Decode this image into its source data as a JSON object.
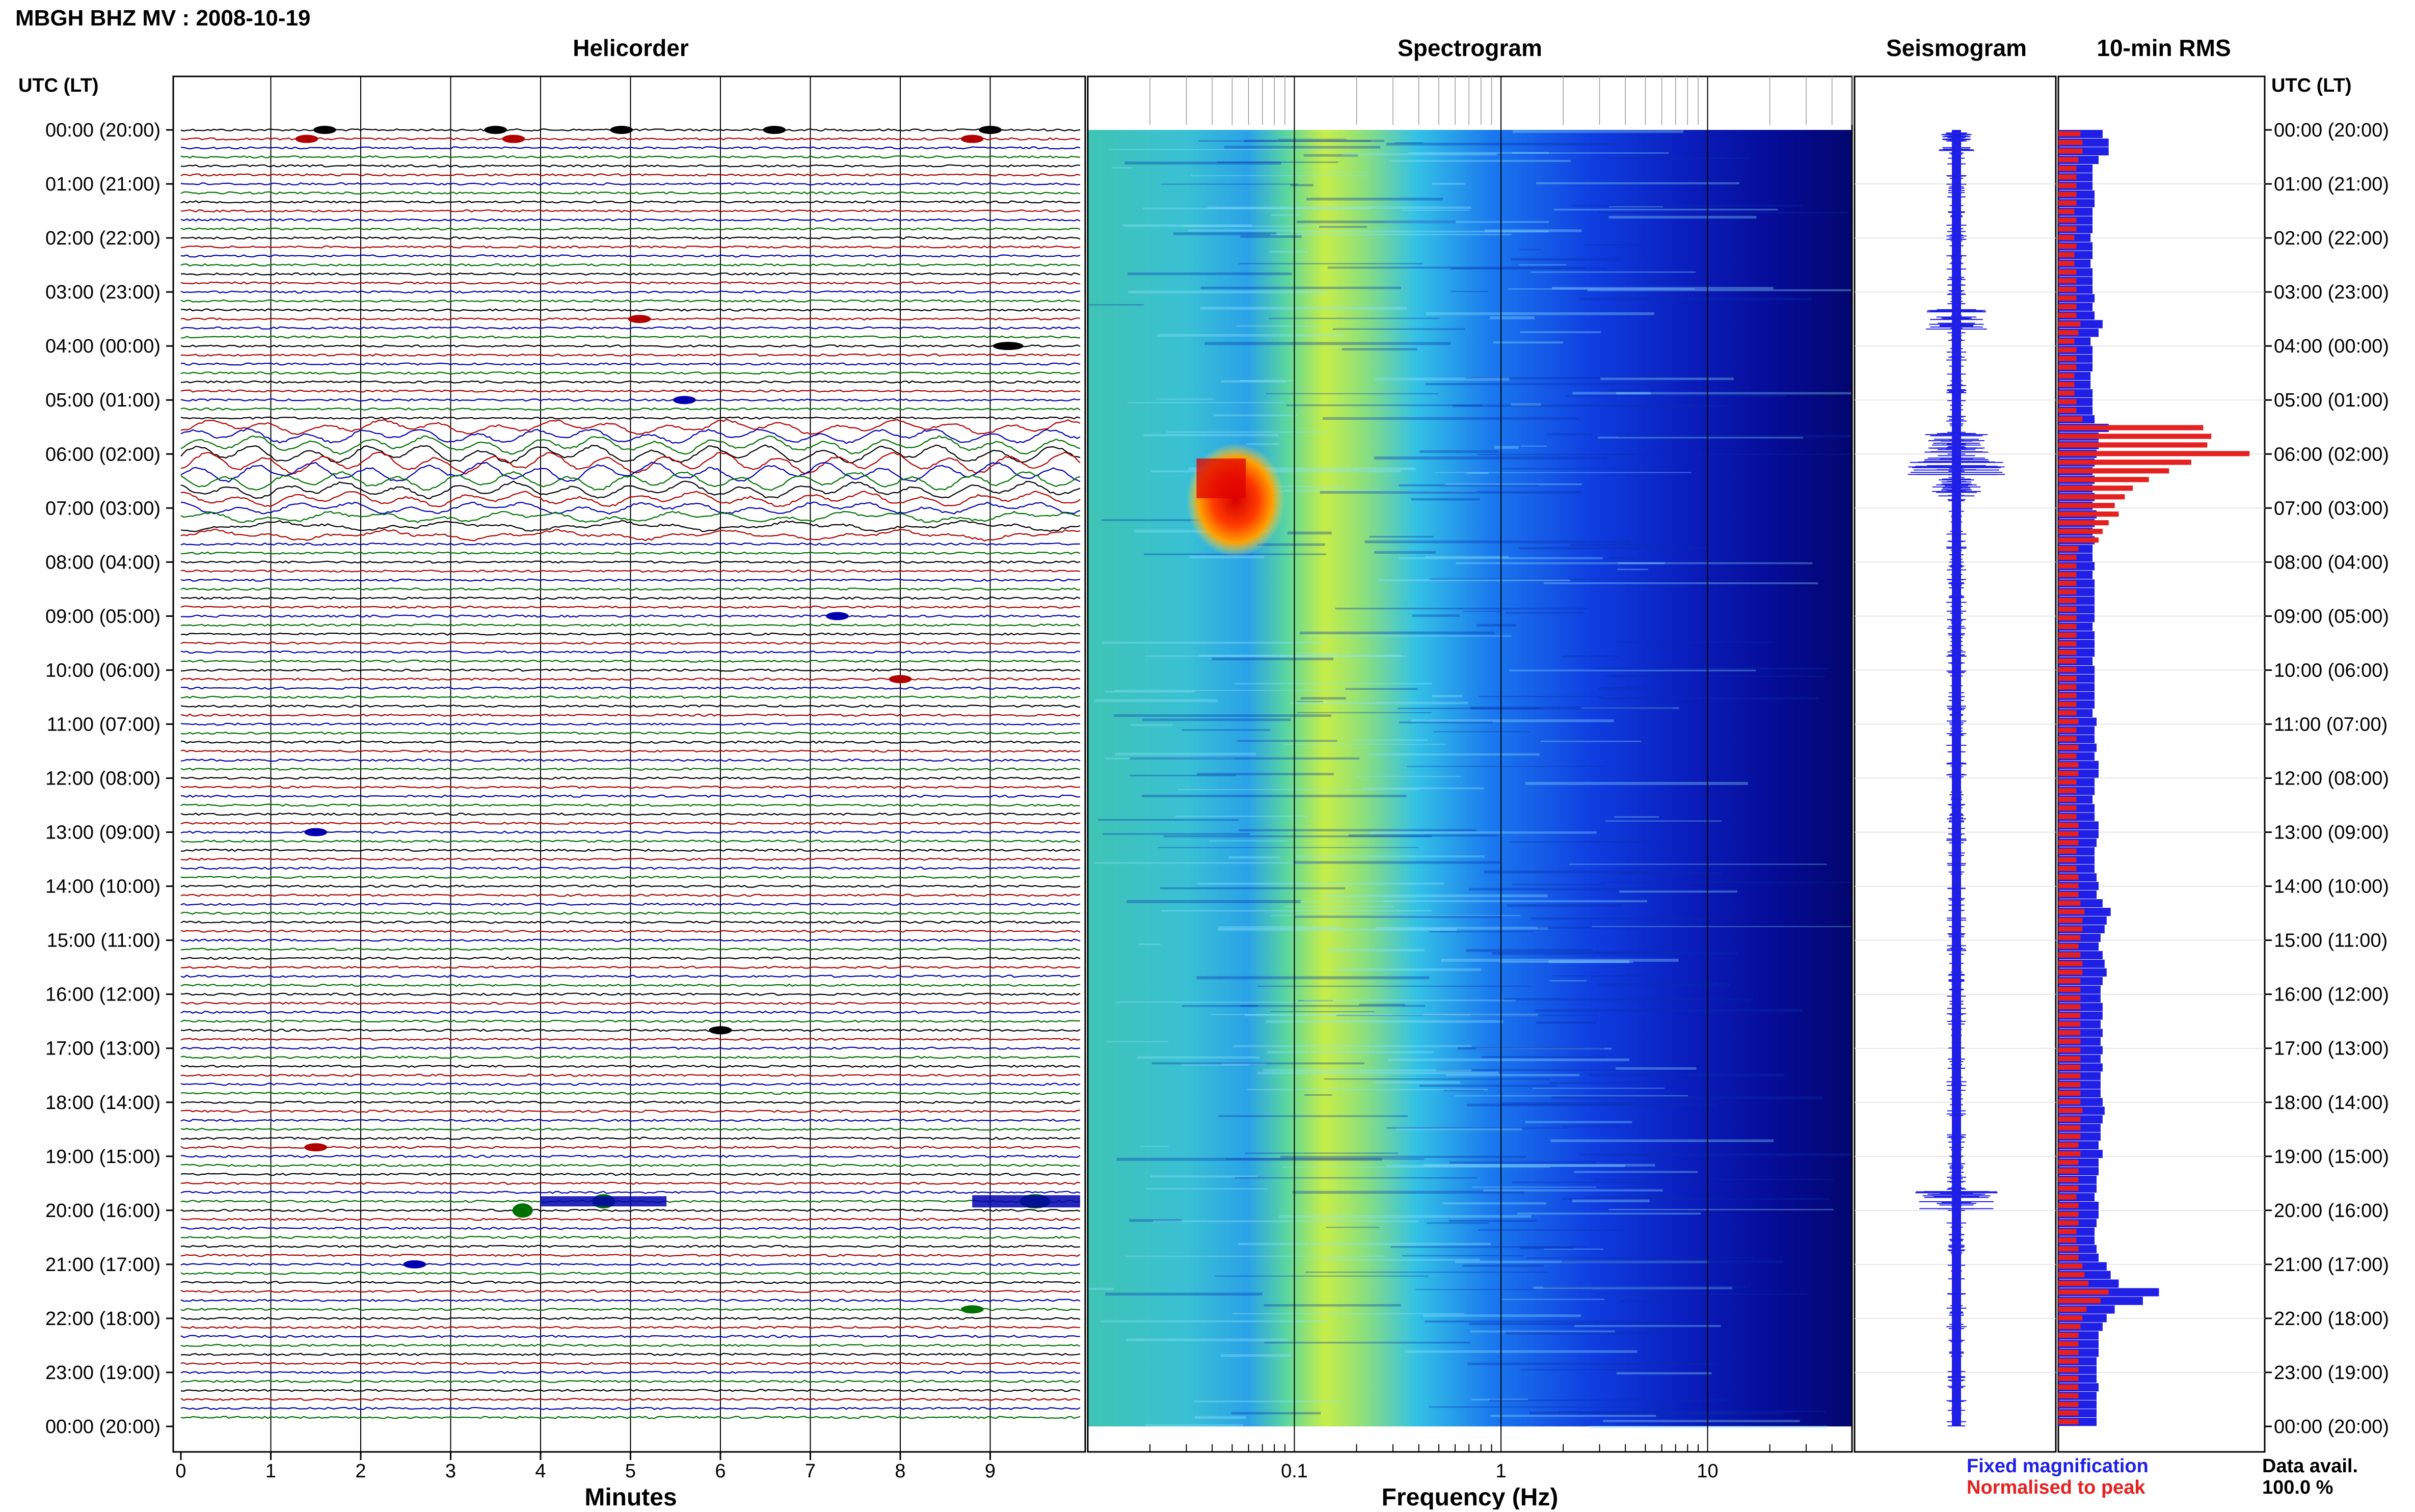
{
  "header": {
    "station_title": "MBGH BHZ MV : 2008-10-19",
    "time_axis_label": "UTC (LT)"
  },
  "panels": {
    "helicorder": "Helicorder",
    "spectrogram": "Spectrogram",
    "seismogram": "Seismogram",
    "rms": "10-min RMS"
  },
  "time_ticks": [
    "00:00 (20:00)",
    "01:00 (21:00)",
    "02:00 (22:00)",
    "03:00 (23:00)",
    "04:00 (00:00)",
    "05:00 (01:00)",
    "06:00 (02:00)",
    "07:00 (03:00)",
    "08:00 (04:00)",
    "09:00 (05:00)",
    "10:00 (06:00)",
    "11:00 (07:00)",
    "12:00 (08:00)",
    "13:00 (09:00)",
    "14:00 (10:00)",
    "15:00 (11:00)",
    "16:00 (12:00)",
    "17:00 (13:00)",
    "18:00 (14:00)",
    "19:00 (15:00)",
    "20:00 (16:00)",
    "21:00 (17:00)",
    "22:00 (18:00)",
    "23:00 (19:00)",
    "00:00 (20:00)"
  ],
  "legend": {
    "fixed": "Fixed magnification",
    "fixed_color": "#1f1fe6",
    "normalised": "Normalised to peak",
    "normalised_color": "#e61f1f",
    "avail_label": "Data avail.",
    "avail_value": "100.0 %"
  },
  "chart_data": {
    "type": "seismic-daily-summary",
    "helicorder": {
      "xlabel": "Minutes",
      "xticks": [
        "0",
        "1",
        "2",
        "3",
        "4",
        "5",
        "6",
        "7",
        "8",
        "9"
      ],
      "xlim": [
        0,
        10
      ],
      "rows_per_hour": 6,
      "trace_colors": [
        "#000000",
        "#b00000",
        "#0000b0",
        "#007000"
      ],
      "events": [
        {
          "hour": 0.0,
          "minute": 1.6
        },
        {
          "hour": 0.0,
          "minute": 3.5
        },
        {
          "hour": 0.0,
          "minute": 4.9
        },
        {
          "hour": 0.0,
          "minute": 6.6
        },
        {
          "hour": 0.0,
          "minute": 9.0
        },
        {
          "hour": 0.17,
          "minute": 1.4
        },
        {
          "hour": 0.17,
          "minute": 3.7
        },
        {
          "hour": 0.17,
          "minute": 8.8
        },
        {
          "hour": 3.5,
          "minute": 5.1
        },
        {
          "hour": 4.0,
          "minute": 9.2
        },
        {
          "hour": 5.0,
          "minute": 5.6
        },
        {
          "hour": 9.0,
          "minute": 7.3
        },
        {
          "hour": 10.1,
          "minute": 8.0
        },
        {
          "hour": 13.0,
          "minute": 1.5
        },
        {
          "hour": 16.7,
          "minute": 6.0
        },
        {
          "hour": 18.8,
          "minute": 1.5
        },
        {
          "hour": 19.8,
          "minute": 4.7
        },
        {
          "hour": 19.8,
          "minute": 9.5
        },
        {
          "hour": 21.0,
          "minute": 2.6
        },
        {
          "hour": 21.8,
          "minute": 8.8
        }
      ],
      "long_period_window_hours": [
        5.5,
        7.6
      ]
    },
    "spectrogram": {
      "xlabel": "Frequency (Hz)",
      "xscale": "log",
      "xlim": [
        0.01,
        50
      ],
      "xticks": [
        "0.1",
        "1",
        "10"
      ],
      "hot_spot": {
        "freq_range_hz": [
          0.03,
          0.09
        ],
        "hour_range": [
          5.8,
          7.9
        ]
      }
    },
    "seismogram": {
      "bursts": [
        {
          "hour": 0.2,
          "amplitude": 0.3
        },
        {
          "hour": 3.5,
          "amplitude": 0.5
        },
        {
          "hour": 5.8,
          "amplitude": 0.55
        },
        {
          "hour": 6.2,
          "amplitude": 0.85
        },
        {
          "hour": 6.6,
          "amplitude": 0.4
        },
        {
          "hour": 19.8,
          "amplitude": 0.7
        }
      ]
    },
    "rms": {
      "series": [
        {
          "name": "Fixed magnification",
          "values": [
            0.22,
            0.25,
            0.25,
            0.2,
            0.17,
            0.17,
            0.17,
            0.18,
            0.18,
            0.17,
            0.17,
            0.17,
            0.16,
            0.17,
            0.17,
            0.16,
            0.17,
            0.17,
            0.17,
            0.18,
            0.17,
            0.18,
            0.22,
            0.2,
            0.16,
            0.17,
            0.17,
            0.17,
            0.16,
            0.16,
            0.17,
            0.17,
            0.17,
            0.18,
            0.25,
            0.2,
            0.2,
            0.19,
            0.18,
            0.17,
            0.18,
            0.17,
            0.18,
            0.17,
            0.19,
            0.18,
            0.17,
            0.18,
            0.17,
            0.17,
            0.18,
            0.17,
            0.18,
            0.18,
            0.18,
            0.18,
            0.18,
            0.17,
            0.18,
            0.18,
            0.18,
            0.17,
            0.18,
            0.18,
            0.18,
            0.18,
            0.18,
            0.17,
            0.19,
            0.18,
            0.18,
            0.19,
            0.18,
            0.2,
            0.2,
            0.18,
            0.18,
            0.17,
            0.18,
            0.18,
            0.2,
            0.2,
            0.19,
            0.18,
            0.18,
            0.18,
            0.19,
            0.2,
            0.19,
            0.22,
            0.26,
            0.24,
            0.23,
            0.21,
            0.2,
            0.22,
            0.23,
            0.24,
            0.22,
            0.21,
            0.21,
            0.22,
            0.22,
            0.21,
            0.22,
            0.21,
            0.22,
            0.21,
            0.22,
            0.21,
            0.21,
            0.21,
            0.22,
            0.23,
            0.22,
            0.21,
            0.21,
            0.2,
            0.22,
            0.2,
            0.2,
            0.19,
            0.19,
            0.18,
            0.2,
            0.2,
            0.19,
            0.18,
            0.18,
            0.19,
            0.2,
            0.24,
            0.26,
            0.3,
            0.5,
            0.42,
            0.28,
            0.24,
            0.22,
            0.2,
            0.2,
            0.2,
            0.19,
            0.19,
            0.19,
            0.2,
            0.19,
            0.19,
            0.19,
            0.19
          ]
        },
        {
          "name": "Normalised to peak",
          "values": [
            0.11,
            0.12,
            0.12,
            0.1,
            0.09,
            0.09,
            0.09,
            0.09,
            0.09,
            0.08,
            0.09,
            0.09,
            0.08,
            0.09,
            0.08,
            0.08,
            0.09,
            0.09,
            0.09,
            0.09,
            0.09,
            0.09,
            0.11,
            0.1,
            0.08,
            0.09,
            0.09,
            0.09,
            0.08,
            0.08,
            0.08,
            0.09,
            0.09,
            0.12,
            0.72,
            0.76,
            0.74,
            0.95,
            0.66,
            0.55,
            0.45,
            0.37,
            0.33,
            0.28,
            0.3,
            0.25,
            0.22,
            0.2,
            0.1,
            0.09,
            0.09,
            0.09,
            0.09,
            0.09,
            0.09,
            0.09,
            0.09,
            0.09,
            0.09,
            0.09,
            0.09,
            0.09,
            0.09,
            0.09,
            0.09,
            0.09,
            0.09,
            0.09,
            0.1,
            0.09,
            0.09,
            0.1,
            0.09,
            0.1,
            0.1,
            0.09,
            0.09,
            0.09,
            0.09,
            0.09,
            0.1,
            0.1,
            0.1,
            0.09,
            0.09,
            0.09,
            0.1,
            0.1,
            0.1,
            0.11,
            0.13,
            0.12,
            0.12,
            0.11,
            0.1,
            0.11,
            0.12,
            0.12,
            0.11,
            0.11,
            0.11,
            0.11,
            0.11,
            0.11,
            0.11,
            0.11,
            0.11,
            0.11,
            0.11,
            0.11,
            0.11,
            0.11,
            0.11,
            0.12,
            0.11,
            0.11,
            0.11,
            0.1,
            0.11,
            0.1,
            0.1,
            0.1,
            0.1,
            0.09,
            0.1,
            0.1,
            0.1,
            0.09,
            0.09,
            0.1,
            0.1,
            0.12,
            0.13,
            0.15,
            0.25,
            0.21,
            0.14,
            0.12,
            0.11,
            0.1,
            0.1,
            0.1,
            0.1,
            0.1,
            0.1,
            0.1,
            0.1,
            0.1,
            0.1,
            0.1
          ]
        }
      ]
    }
  }
}
